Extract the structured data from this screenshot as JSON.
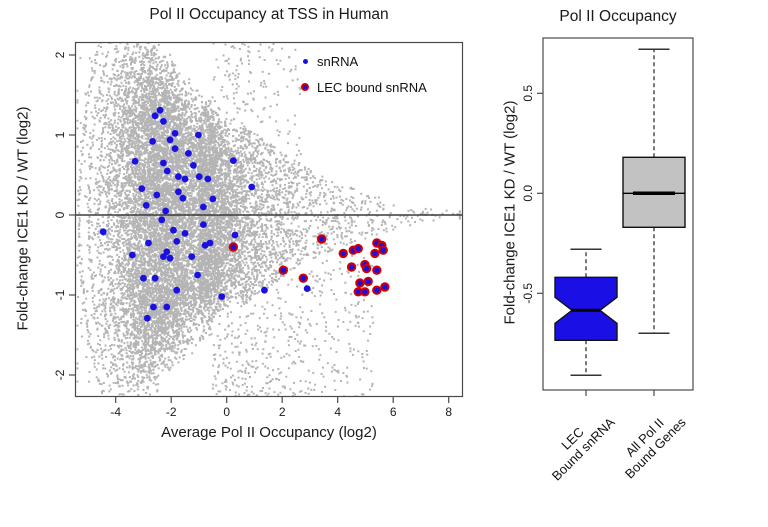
{
  "figure": {
    "background": "#ffffff"
  },
  "chart_data": [
    {
      "type": "scatter",
      "title": "Pol II Occupancy at TSS in Human",
      "xlabel": "Average Pol II Occupancy (log2)",
      "ylabel": "Fold-change ICE1 KD / WT (log2)",
      "xlim": [
        -5.47,
        8.52
      ],
      "ylim": [
        -2.28,
        2.16
      ],
      "x_ticks": [
        {
          "value": -4,
          "label": "-4"
        },
        {
          "value": -2,
          "label": "-2"
        },
        {
          "value": 0,
          "label": "0"
        },
        {
          "value": 2,
          "label": "2"
        },
        {
          "value": 4,
          "label": "4"
        },
        {
          "value": 6,
          "label": "6"
        },
        {
          "value": 8,
          "label": "8"
        }
      ],
      "y_ticks": [
        {
          "value": 2,
          "label": "2"
        },
        {
          "value": 1,
          "label": "1"
        },
        {
          "value": 0,
          "label": "0"
        },
        {
          "value": -1,
          "label": "-1"
        },
        {
          "value": -2,
          "label": "-2"
        }
      ],
      "zero_line_y": 0,
      "legend": [
        {
          "label": "snRNA",
          "marker": "small-blue-dot"
        },
        {
          "label": "LEC bound snRNA",
          "marker": "blue-dot-red-ring"
        }
      ],
      "series": [
        {
          "name": "snRNA",
          "color": "#1a10e0",
          "points": [
            [
              -2.4,
              1.31
            ],
            [
              -2.58,
              1.24
            ],
            [
              -2.28,
              1.17
            ],
            [
              -1.86,
              1.02
            ],
            [
              -1.02,
              1.0
            ],
            [
              -2.04,
              0.94
            ],
            [
              -2.67,
              0.92
            ],
            [
              -1.86,
              0.83
            ],
            [
              -1.38,
              0.77
            ],
            [
              -3.3,
              0.67
            ],
            [
              -2.28,
              0.65
            ],
            [
              -1.2,
              0.62
            ],
            [
              -2.14,
              0.55
            ],
            [
              -1.74,
              0.48
            ],
            [
              -0.99,
              0.48
            ],
            [
              -1.5,
              0.45
            ],
            [
              -0.68,
              0.45
            ],
            [
              0.24,
              0.68
            ],
            [
              0.9,
              0.35
            ],
            [
              -3.06,
              0.33
            ],
            [
              -1.74,
              0.29
            ],
            [
              -2.52,
              0.25
            ],
            [
              -1.58,
              0.21
            ],
            [
              -0.5,
              0.2
            ],
            [
              -2.9,
              0.12
            ],
            [
              -0.84,
              0.1
            ],
            [
              -2.2,
              0.05
            ],
            [
              -2.34,
              -0.06
            ],
            [
              -0.84,
              -0.12
            ],
            [
              -1.92,
              -0.19
            ],
            [
              -4.45,
              -0.21
            ],
            [
              -1.5,
              -0.23
            ],
            [
              0.3,
              -0.25
            ],
            [
              -1.8,
              -0.33
            ],
            [
              -2.82,
              -0.35
            ],
            [
              -0.6,
              -0.35
            ],
            [
              -0.78,
              -0.38
            ],
            [
              -2.16,
              -0.46
            ],
            [
              -3.4,
              -0.5
            ],
            [
              -2.28,
              -0.52
            ],
            [
              -1.26,
              -0.52
            ],
            [
              -2.04,
              -0.54
            ],
            [
              -1.05,
              -0.75
            ],
            [
              -3.0,
              -0.79
            ],
            [
              -2.58,
              -0.79
            ],
            [
              -1.8,
              -0.94
            ],
            [
              2.9,
              -0.92
            ],
            [
              1.36,
              -0.94
            ],
            [
              -0.18,
              -1.02
            ],
            [
              -2.64,
              -1.15
            ],
            [
              -2.16,
              -1.15
            ],
            [
              -2.86,
              -1.29
            ]
          ]
        },
        {
          "name": "LEC bound snRNA",
          "ring_color": "#d40000",
          "core_color": "#1a10e0",
          "points": [
            [
              0.24,
              -0.4
            ],
            [
              2.04,
              -0.69
            ],
            [
              2.76,
              -0.79
            ],
            [
              3.42,
              -0.3
            ],
            [
              4.2,
              -0.48
            ],
            [
              4.56,
              -0.44
            ],
            [
              4.74,
              -0.42
            ],
            [
              5.34,
              -0.48
            ],
            [
              5.41,
              -0.35
            ],
            [
              5.59,
              -0.38
            ],
            [
              5.64,
              -0.44
            ],
            [
              4.5,
              -0.65
            ],
            [
              4.98,
              -0.62
            ],
            [
              5.04,
              -0.67
            ],
            [
              5.41,
              -0.69
            ],
            [
              4.8,
              -0.85
            ],
            [
              5.1,
              -0.83
            ],
            [
              4.74,
              -0.96
            ],
            [
              4.98,
              -0.96
            ],
            [
              5.41,
              -0.94
            ],
            [
              5.7,
              -0.9
            ]
          ]
        }
      ],
      "background_cloud": {
        "description": "all Pol II bound genes (dense gray MA-plot cloud with low-count streak artifacts)",
        "color": "#b4b4b4",
        "n_core": 13000,
        "n_below": 420,
        "n_above": 130,
        "seed": 42,
        "envelope": [
          [
            -5.5,
            2.35
          ],
          [
            -3.0,
            2.3
          ],
          [
            -2.0,
            2.05
          ],
          [
            -1.0,
            1.65
          ],
          [
            0,
            1.32
          ],
          [
            1,
            1.05
          ],
          [
            2,
            0.8
          ],
          [
            3,
            0.58
          ],
          [
            4,
            0.42
          ],
          [
            5,
            0.3
          ],
          [
            6,
            0.19
          ],
          [
            7,
            0.1
          ],
          [
            8.6,
            0.04
          ]
        ],
        "streak_x0": [
          -5.32,
          -4.98,
          -4.62,
          -4.28,
          -3.95,
          -3.62,
          -3.3
        ],
        "streak_points_each": 110
      },
      "colors": {
        "frame": "#4a4a4a",
        "zero_line": "#3a3a3a",
        "tick_text": "#1a1a1a"
      }
    },
    {
      "type": "box",
      "title": "Pol II Occupancy",
      "ylabel": "Fold-change ICE1 KD / WT (log2)",
      "ylim": [
        -0.98,
        0.78
      ],
      "y_ticks": [
        {
          "value": 0.5,
          "label": "0.5"
        },
        {
          "value": 0.0,
          "label": "0.0"
        },
        {
          "value": -0.5,
          "label": "-0.5"
        }
      ],
      "groups": [
        {
          "label_lines": [
            "LEC",
            "Bound snRNA"
          ],
          "fill": "#1a10e6",
          "notched": true,
          "stats": {
            "whisker_low": -0.91,
            "q1": -0.735,
            "median": -0.585,
            "q3": -0.42,
            "whisker_high": -0.28
          },
          "notch": {
            "low": -0.65,
            "high": -0.52
          }
        },
        {
          "label_lines": [
            "All Pol II",
            "Bound Genes"
          ],
          "fill": "#c2c2c2",
          "notched": false,
          "stats": {
            "whisker_low": -0.7,
            "q1": -0.17,
            "median": 0.0,
            "q3": 0.18,
            "whisker_high": 0.72
          }
        }
      ],
      "colors": {
        "frame": "#4a4a4a",
        "whisker": "#333333",
        "box_border": "#111111",
        "median": "#000000"
      }
    }
  ]
}
